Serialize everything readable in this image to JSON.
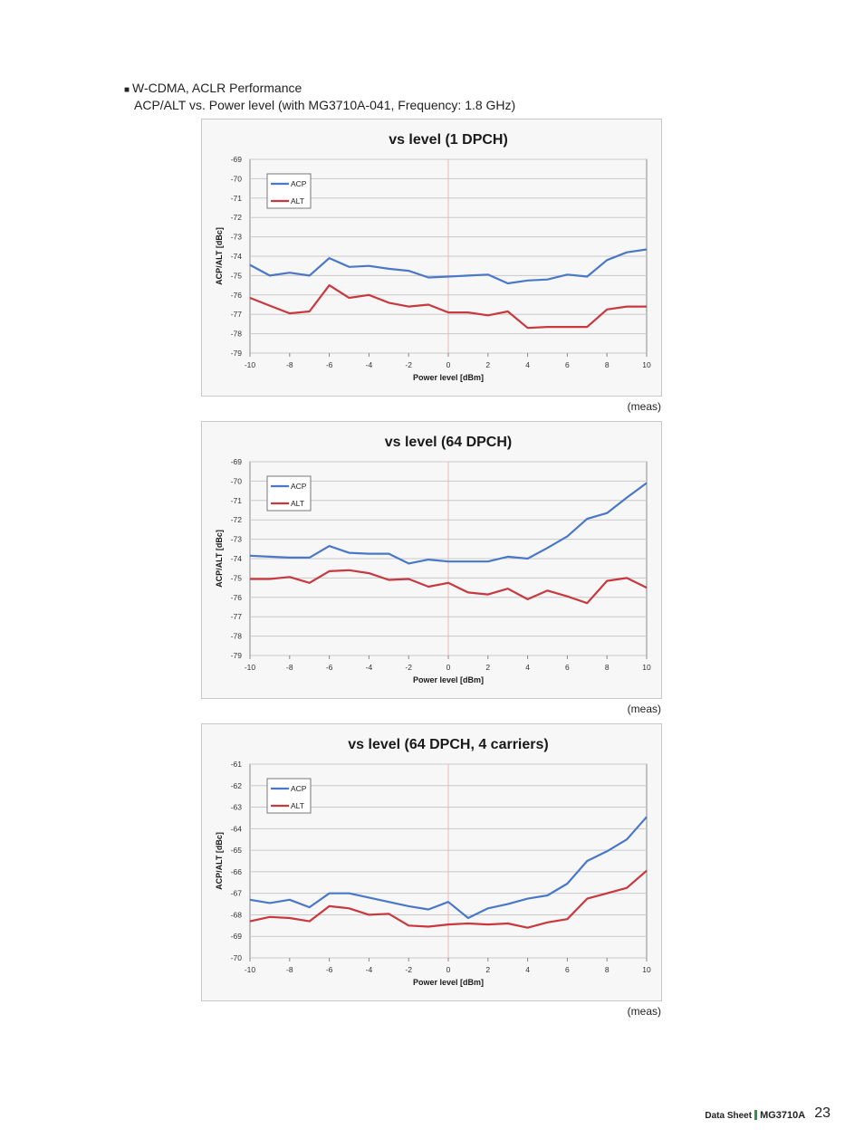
{
  "heading": {
    "bullet": "■",
    "line1": "W-CDMA, ACLR Performance",
    "line2": "ACP/ALT vs. Power level (with MG3710A-041, Frequency: 1.8 GHz)"
  },
  "footer": {
    "doc": "Data Sheet",
    "model": "MG3710A",
    "page": "23"
  },
  "colors": {
    "acp": "#4a78c8",
    "alt": "#c8383c",
    "grid": "#c8c8c8",
    "center_line": "#e8b8b8"
  },
  "chart_data": [
    {
      "type": "line",
      "title": "vs level (1 DPCH)",
      "xlabel": "Power level [dBm]",
      "ylabel": "ACP/ALT [dBc]",
      "caption": "(meas)",
      "xlim": [
        -10,
        10
      ],
      "ylim": [
        -79,
        -69
      ],
      "xticks": [
        -10,
        -8,
        -6,
        -4,
        -2,
        0,
        2,
        4,
        6,
        8,
        10
      ],
      "yticks": [
        -69,
        -70,
        -71,
        -72,
        -73,
        -74,
        -75,
        -76,
        -77,
        -78,
        -79
      ],
      "grid": true,
      "legend": "top-left",
      "x": [
        -10,
        -9,
        -8,
        -7,
        -6,
        -5,
        -4,
        -3,
        -2,
        -1,
        0,
        1,
        2,
        3,
        4,
        5,
        6,
        7,
        8,
        9,
        10
      ],
      "series": [
        {
          "name": "ACP",
          "values": [
            -74.45,
            -75.0,
            -74.85,
            -75.0,
            -74.1,
            -74.55,
            -74.5,
            -74.65,
            -74.75,
            -75.1,
            -75.05,
            -75.0,
            -74.95,
            -75.4,
            -75.25,
            -75.2,
            -74.95,
            -75.05,
            -74.2,
            -73.8,
            -73.65
          ]
        },
        {
          "name": "ALT",
          "values": [
            -76.15,
            -76.55,
            -76.95,
            -76.85,
            -75.5,
            -76.15,
            -76.0,
            -76.4,
            -76.6,
            -76.5,
            -76.9,
            -76.9,
            -77.05,
            -76.85,
            -77.7,
            -77.65,
            -77.65,
            -77.65,
            -76.75,
            -76.6,
            -76.6
          ]
        }
      ]
    },
    {
      "type": "line",
      "title": "vs level (64 DPCH)",
      "xlabel": "Power level [dBm]",
      "ylabel": "ACP/ALT [dBc]",
      "caption": "(meas)",
      "xlim": [
        -10,
        10
      ],
      "ylim": [
        -79,
        -69
      ],
      "xticks": [
        -10,
        -8,
        -6,
        -4,
        -2,
        0,
        2,
        4,
        6,
        8,
        10
      ],
      "yticks": [
        -69,
        -70,
        -71,
        -72,
        -73,
        -74,
        -75,
        -76,
        -77,
        -78,
        -79
      ],
      "grid": true,
      "legend": "top-left",
      "x": [
        -10,
        -9,
        -8,
        -7,
        -6,
        -5,
        -4,
        -3,
        -2,
        -1,
        0,
        1,
        2,
        3,
        4,
        5,
        6,
        7,
        8,
        9,
        10
      ],
      "series": [
        {
          "name": "ACP",
          "values": [
            -73.85,
            -73.9,
            -73.95,
            -73.95,
            -73.35,
            -73.7,
            -73.75,
            -73.75,
            -74.25,
            -74.05,
            -74.15,
            -74.15,
            -74.15,
            -73.9,
            -74.0,
            -73.45,
            -72.85,
            -71.95,
            -71.65,
            -70.85,
            -70.1
          ]
        },
        {
          "name": "ALT",
          "values": [
            -75.05,
            -75.05,
            -74.95,
            -75.25,
            -74.65,
            -74.6,
            -74.75,
            -75.1,
            -75.05,
            -75.45,
            -75.25,
            -75.75,
            -75.85,
            -75.55,
            -76.1,
            -75.65,
            -75.95,
            -76.3,
            -75.15,
            -75.0,
            -75.5
          ]
        }
      ]
    },
    {
      "type": "line",
      "title": "vs level (64 DPCH, 4 carriers)",
      "xlabel": "Power level [dBm]",
      "ylabel": "ACP/ALT [dBc]",
      "caption": "(meas)",
      "xlim": [
        -10,
        10
      ],
      "ylim": [
        -70,
        -61
      ],
      "xticks": [
        -10,
        -8,
        -6,
        -4,
        -2,
        0,
        2,
        4,
        6,
        8,
        10
      ],
      "yticks": [
        -61,
        -62,
        -63,
        -64,
        -65,
        -66,
        -67,
        -68,
        -69,
        -70
      ],
      "grid": true,
      "legend": "top-left",
      "x": [
        -10,
        -9,
        -8,
        -7,
        -6,
        -5,
        -4,
        -3,
        -2,
        -1,
        0,
        1,
        2,
        3,
        4,
        5,
        6,
        7,
        8,
        9,
        10
      ],
      "series": [
        {
          "name": "ACP",
          "values": [
            -67.3,
            -67.45,
            -67.3,
            -67.65,
            -67.0,
            -67.0,
            -67.2,
            -67.4,
            -67.6,
            -67.75,
            -67.4,
            -68.15,
            -67.7,
            -67.5,
            -67.25,
            -67.1,
            -66.55,
            -65.5,
            -65.05,
            -64.5,
            -63.45
          ]
        },
        {
          "name": "ALT",
          "values": [
            -68.3,
            -68.1,
            -68.15,
            -68.3,
            -67.6,
            -67.7,
            -68.0,
            -67.95,
            -68.5,
            -68.55,
            -68.45,
            -68.4,
            -68.45,
            -68.4,
            -68.6,
            -68.35,
            -68.2,
            -67.25,
            -67.0,
            -66.75,
            -65.95
          ]
        }
      ]
    }
  ]
}
